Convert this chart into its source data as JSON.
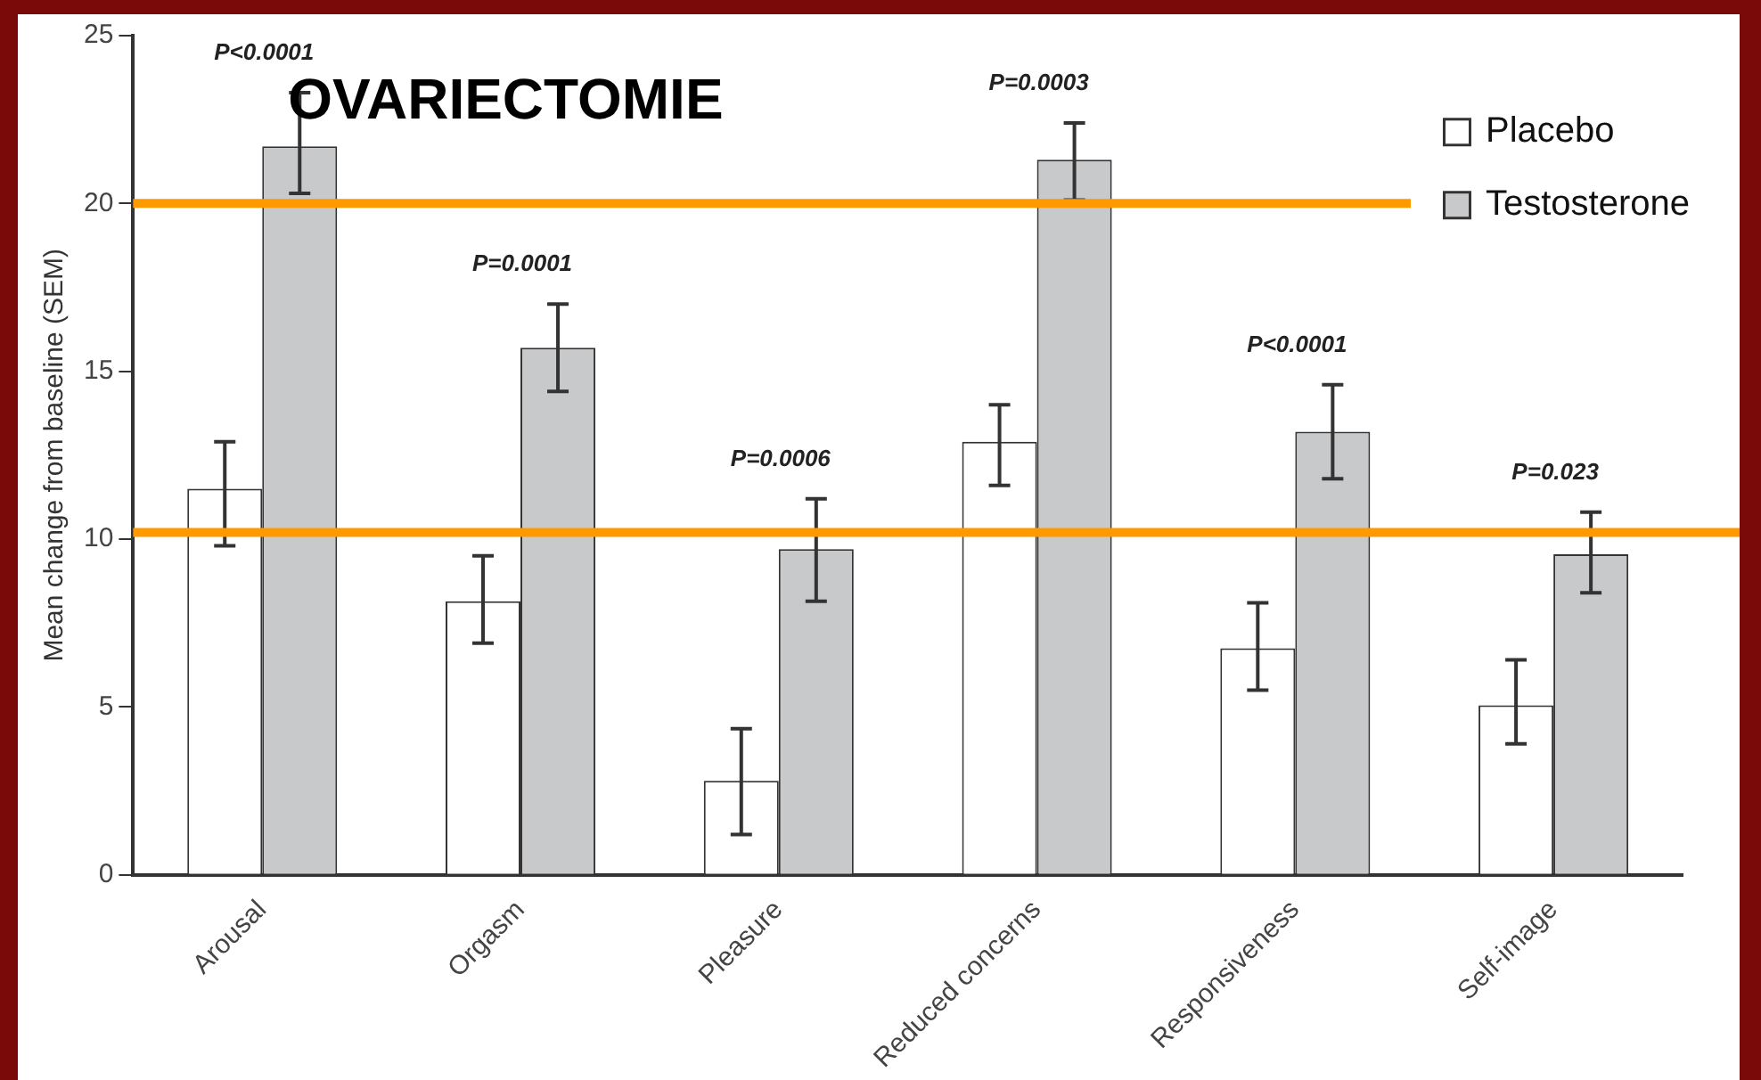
{
  "chart_data": {
    "type": "bar",
    "title": "OVARIECTOMIE",
    "ylabel": "Mean change from baseline (SEM)",
    "categories": [
      "Arousal",
      "Orgasm",
      "Pleasure",
      "Reduced concerns",
      "Responsiveness",
      "Self-image"
    ],
    "series": [
      {
        "name": "Placebo",
        "color": "#ffffff",
        "values": [
          11.5,
          8.15,
          2.8,
          12.9,
          6.75,
          5.05
        ],
        "errors": [
          [
            9.8,
            12.9
          ],
          [
            6.9,
            9.5
          ],
          [
            1.2,
            4.35
          ],
          [
            11.6,
            14.0
          ],
          [
            5.5,
            8.1
          ],
          [
            3.9,
            6.4
          ]
        ]
      },
      {
        "name": "Testosterone",
        "color": "#c8c9cb",
        "values": [
          21.7,
          15.7,
          9.7,
          21.3,
          13.2,
          9.55
        ],
        "errors": [
          [
            20.3,
            23.3
          ],
          [
            14.4,
            17.0
          ],
          [
            8.15,
            11.2
          ],
          [
            20.1,
            22.4
          ],
          [
            11.8,
            14.6
          ],
          [
            8.4,
            10.8
          ]
        ]
      }
    ],
    "ylim": [
      0,
      25
    ],
    "yticks": [
      0,
      5,
      10,
      15,
      20,
      25
    ],
    "grid": false,
    "legend": "top right",
    "ref_lines": [
      {
        "axis": "y",
        "value": 20,
        "color": "#ff9900"
      },
      {
        "axis": "y",
        "value": 10.2,
        "color": "#ff9900"
      }
    ],
    "annotations": [
      "P<0.0001",
      "P=0.0001",
      "P=0.0006",
      "P=0.0003",
      "P<0.0001",
      "P=0.023"
    ]
  }
}
